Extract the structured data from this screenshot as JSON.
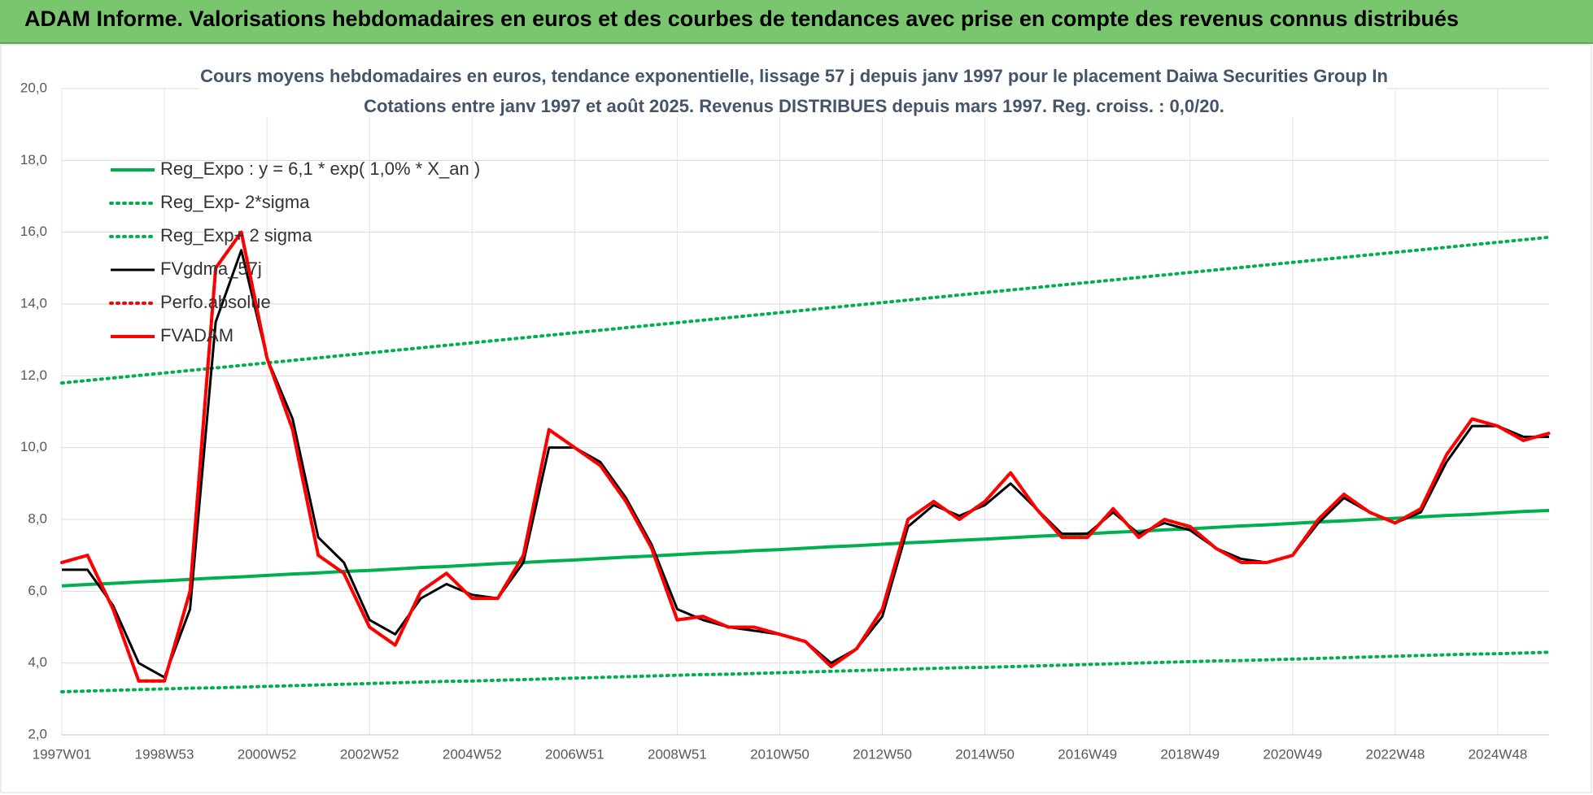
{
  "header": {
    "title": "ADAM Informe. Valorisations hebdomadaires en euros et des courbes de tendances avec prise en compte des revenus connus distribués"
  },
  "chart_data": {
    "type": "line",
    "title": "Cours moyens hebdomadaires en euros, tendance exponentielle, lissage 57 j depuis janv 1997 pour le placement Daiwa Securities Group In",
    "subtitle": "Cotations entre janv 1997 et août 2025.  Revenus DISTRIBUES depuis mars 1997. Reg. croiss. : 0,0/20.",
    "categories": [
      "1997W01",
      null,
      null,
      null,
      "1998W53",
      null,
      null,
      null,
      "2000W52",
      null,
      null,
      null,
      "2002W52",
      null,
      null,
      null,
      "2004W52",
      null,
      null,
      null,
      "2006W51",
      null,
      null,
      null,
      "2008W51",
      null,
      null,
      null,
      "2010W50",
      null,
      null,
      null,
      "2012W50",
      null,
      null,
      null,
      "2014W50",
      null,
      null,
      null,
      "2016W49",
      null,
      null,
      null,
      "2018W49",
      null,
      null,
      null,
      "2020W49",
      null,
      null,
      null,
      "2022W48",
      null,
      null,
      null,
      "2024W48",
      null,
      null
    ],
    "ylim": [
      2,
      20
    ],
    "yticks": [
      {
        "value": 2,
        "label": "2,0"
      },
      {
        "value": 4,
        "label": "4,0"
      },
      {
        "value": 6,
        "label": "6,0"
      },
      {
        "value": 8,
        "label": "8,0"
      },
      {
        "value": 10,
        "label": "10,0"
      },
      {
        "value": 12,
        "label": "12,0"
      },
      {
        "value": 14,
        "label": "14,0"
      },
      {
        "value": 16,
        "label": "16,0"
      },
      {
        "value": 18,
        "label": "18,0"
      },
      {
        "value": 20,
        "label": "20,0"
      }
    ],
    "grid": true,
    "series": [
      {
        "name": "Reg_Expo : y = 6,1 * exp( 1,0% *  X_an )",
        "color": "#00b050",
        "line_style": "solid",
        "values": [
          6.15,
          6.19,
          6.22,
          6.26,
          6.29,
          6.33,
          6.37,
          6.4,
          6.44,
          6.48,
          6.51,
          6.55,
          6.58,
          6.62,
          6.66,
          6.69,
          6.73,
          6.77,
          6.8,
          6.84,
          6.87,
          6.91,
          6.95,
          6.98,
          7.02,
          7.06,
          7.09,
          7.13,
          7.16,
          7.2,
          7.24,
          7.27,
          7.31,
          7.35,
          7.38,
          7.42,
          7.45,
          7.49,
          7.53,
          7.56,
          7.6,
          7.64,
          7.67,
          7.71,
          7.74,
          7.78,
          7.82,
          7.85,
          7.89,
          7.93,
          7.96,
          8.0,
          8.03,
          8.07,
          8.11,
          8.14,
          8.18,
          8.22,
          8.25
        ]
      },
      {
        "name": "Reg_Exp- 2*sigma",
        "color": "#00b050",
        "line_style": "dotted",
        "values": [
          3.2,
          3.22,
          3.24,
          3.26,
          3.28,
          3.3,
          3.31,
          3.33,
          3.35,
          3.37,
          3.39,
          3.41,
          3.43,
          3.45,
          3.47,
          3.49,
          3.5,
          3.52,
          3.54,
          3.56,
          3.58,
          3.6,
          3.62,
          3.64,
          3.66,
          3.68,
          3.69,
          3.71,
          3.73,
          3.75,
          3.77,
          3.79,
          3.81,
          3.83,
          3.85,
          3.87,
          3.88,
          3.9,
          3.92,
          3.94,
          3.96,
          3.98,
          4.0,
          4.02,
          4.04,
          4.06,
          4.07,
          4.09,
          4.11,
          4.13,
          4.15,
          4.17,
          4.19,
          4.21,
          4.23,
          4.25,
          4.26,
          4.28,
          4.3
        ]
      },
      {
        "name": "Reg_Exp+ 2 sigma",
        "color": "#00b050",
        "line_style": "dotted",
        "values": [
          11.8,
          11.87,
          11.94,
          12.01,
          12.08,
          12.15,
          12.22,
          12.29,
          12.36,
          12.43,
          12.5,
          12.57,
          12.64,
          12.71,
          12.78,
          12.85,
          12.92,
          12.99,
          13.06,
          13.13,
          13.2,
          13.27,
          13.34,
          13.41,
          13.48,
          13.55,
          13.62,
          13.69,
          13.76,
          13.83,
          13.9,
          13.97,
          14.04,
          14.11,
          14.18,
          14.25,
          14.32,
          14.39,
          14.46,
          14.53,
          14.6,
          14.67,
          14.74,
          14.81,
          14.88,
          14.95,
          15.02,
          15.09,
          15.16,
          15.23,
          15.3,
          15.37,
          15.44,
          15.51,
          15.58,
          15.65,
          15.72,
          15.79,
          15.86
        ]
      },
      {
        "name": "FVgdma_57j",
        "color": "#000000",
        "line_style": "solid",
        "values": [
          6.6,
          6.6,
          5.6,
          4.0,
          3.6,
          5.5,
          13.5,
          15.5,
          12.5,
          10.8,
          7.5,
          6.8,
          5.2,
          4.8,
          5.8,
          6.2,
          5.9,
          5.8,
          6.8,
          10.0,
          10.0,
          9.6,
          8.6,
          7.3,
          5.5,
          5.2,
          5.0,
          4.9,
          4.8,
          4.6,
          4.0,
          4.4,
          5.3,
          7.8,
          8.4,
          8.1,
          8.4,
          9.0,
          8.3,
          7.6,
          7.6,
          8.2,
          7.6,
          7.9,
          7.7,
          7.2,
          6.9,
          6.8,
          7.0,
          7.9,
          8.6,
          8.2,
          7.9,
          8.2,
          9.6,
          10.6,
          10.6,
          10.3,
          10.3
        ]
      },
      {
        "name": "Perfo.absolue",
        "color": "#ff0000",
        "line_style": "dotted",
        "values": [
          6.8,
          7.0,
          5.5,
          3.5,
          3.5,
          6.0,
          15.0,
          16.0,
          12.5,
          10.5,
          7.0,
          6.5,
          5.0,
          4.5,
          6.0,
          6.5,
          5.8,
          5.8,
          7.0,
          10.5,
          10.0,
          9.5,
          8.5,
          7.2,
          5.2,
          5.3,
          5.0,
          5.0,
          4.8,
          4.6,
          3.9,
          4.4,
          5.5,
          8.0,
          8.5,
          8.0,
          8.5,
          9.3,
          8.3,
          7.5,
          7.5,
          8.3,
          7.5,
          8.0,
          7.8,
          7.2,
          6.8,
          6.8,
          7.0,
          8.0,
          8.7,
          8.2,
          7.9,
          8.3,
          9.8,
          10.8,
          10.6,
          10.2,
          10.4
        ]
      },
      {
        "name": "FVADAM",
        "color": "#ff0000",
        "line_style": "solid",
        "values": [
          6.8,
          7.0,
          5.5,
          3.5,
          3.5,
          6.0,
          15.0,
          16.0,
          12.5,
          10.5,
          7.0,
          6.5,
          5.0,
          4.5,
          6.0,
          6.5,
          5.8,
          5.8,
          7.0,
          10.5,
          10.0,
          9.5,
          8.5,
          7.2,
          5.2,
          5.3,
          5.0,
          5.0,
          4.8,
          4.6,
          3.9,
          4.4,
          5.5,
          8.0,
          8.5,
          8.0,
          8.5,
          9.3,
          8.3,
          7.5,
          7.5,
          8.3,
          7.5,
          8.0,
          7.8,
          7.2,
          6.8,
          6.8,
          7.0,
          8.0,
          8.7,
          8.2,
          7.9,
          8.3,
          9.8,
          10.8,
          10.6,
          10.2,
          10.4
        ]
      }
    ]
  }
}
